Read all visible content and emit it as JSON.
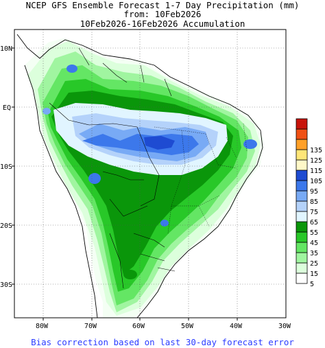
{
  "header": {
    "line1": "NCEP GFS Ensemble Forecast 1-7 Day Precipitation (mm)",
    "line2": "from: 10Feb2026",
    "line3": "10Feb2026-16Feb2026 Accumulation"
  },
  "footer": {
    "note": "Bias correction based on last 30-day forecast error"
  },
  "map": {
    "lat_labels": [
      "10N",
      "EQ",
      "10S",
      "20S",
      "30S"
    ],
    "lon_labels": [
      "80W",
      "70W",
      "60W",
      "50W",
      "40W",
      "30W"
    ],
    "lon_range": [
      -85,
      -30
    ],
    "lat_range": [
      -36,
      13
    ]
  },
  "legend": {
    "items": [
      {
        "label": "",
        "color": "#c8140a"
      },
      {
        "label": "135",
        "color": "#f05014"
      },
      {
        "label": "125",
        "color": "#ffa028"
      },
      {
        "label": "115",
        "color": "#ffe678"
      },
      {
        "label": "105",
        "color": "#fff8c8"
      },
      {
        "label": "95",
        "color": "#1e4bd2"
      },
      {
        "label": "85",
        "color": "#3c78eb"
      },
      {
        "label": "75",
        "color": "#78aaf5"
      },
      {
        "label": "65",
        "color": "#b4d2fa"
      },
      {
        "label": "55",
        "color": "#e1f5ff"
      },
      {
        "label": "45",
        "color": "#0a960a"
      },
      {
        "label": "35",
        "color": "#28c828"
      },
      {
        "label": "25",
        "color": "#64e664"
      },
      {
        "label": "15",
        "color": "#a0f5a0"
      },
      {
        "label": "5",
        "color": "#dcffdc"
      },
      {
        "label": "",
        "color": "#ffffff"
      }
    ]
  }
}
